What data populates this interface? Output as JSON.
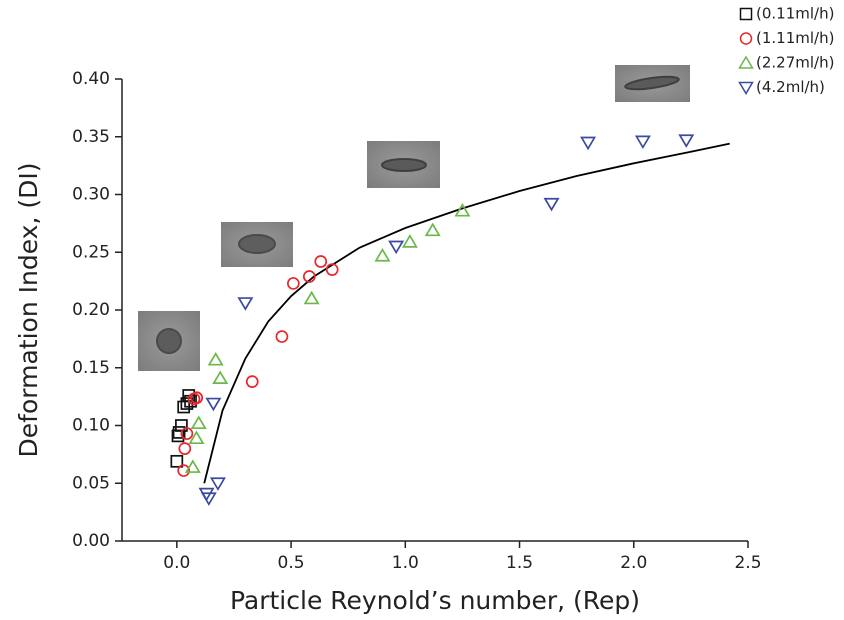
{
  "chart_data": {
    "type": "scatter",
    "x_label": "Particle Reynold’s number, (Rep)",
    "y_label": "Deformation Index, (DI)",
    "xlim": [
      -0.24,
      2.5
    ],
    "ylim": [
      0,
      0.4
    ],
    "xticks": [
      {
        "value": 0,
        "label": "0.0"
      },
      {
        "value": 0.5,
        "label": "0.5"
      },
      {
        "value": 1,
        "label": "1.0"
      },
      {
        "value": 1.5,
        "label": "1.5"
      },
      {
        "value": 2,
        "label": "2.0"
      },
      {
        "value": 2.5,
        "label": "2.5"
      }
    ],
    "yticks": [
      {
        "value": 0,
        "label": "0.00"
      },
      {
        "value": 0.05,
        "label": "0.05"
      },
      {
        "value": 0.1,
        "label": "0.10"
      },
      {
        "value": 0.15,
        "label": "0.15"
      },
      {
        "value": 0.2,
        "label": "0.20"
      },
      {
        "value": 0.25,
        "label": "0.25"
      },
      {
        "value": 0.3,
        "label": "0.30"
      },
      {
        "value": 0.35,
        "label": "0.35"
      },
      {
        "value": 0.4,
        "label": "0.40"
      }
    ],
    "legend": "top-right",
    "series": [
      {
        "name": "(0.11ml/h)",
        "color": "#111111",
        "marker": "square",
        "x": [
          0.0,
          0.005,
          0.01,
          0.02,
          0.03,
          0.044,
          0.052,
          0.06
        ],
        "values": [
          0.069,
          0.091,
          0.094,
          0.1,
          0.116,
          0.119,
          0.126,
          0.121
        ]
      },
      {
        "name": "(1.11ml/h)",
        "color": "#e8262a",
        "marker": "circle",
        "x": [
          0.03,
          0.035,
          0.044,
          0.075,
          0.087,
          0.33,
          0.46,
          0.51,
          0.58,
          0.63,
          0.68
        ],
        "values": [
          0.061,
          0.08,
          0.093,
          0.123,
          0.124,
          0.138,
          0.177,
          0.223,
          0.229,
          0.242,
          0.235
        ]
      },
      {
        "name": "(2.27ml/h)",
        "color": "#6ab84a",
        "marker": "triangle-up",
        "x": [
          0.07,
          0.086,
          0.096,
          0.17,
          0.19,
          0.59,
          0.9,
          1.02,
          1.12,
          1.25
        ],
        "values": [
          0.064,
          0.089,
          0.102,
          0.157,
          0.141,
          0.21,
          0.247,
          0.259,
          0.269,
          0.286
        ]
      },
      {
        "name": "(4.2ml/h)",
        "color": "#3b4aa0",
        "marker": "triangle-down",
        "x": [
          0.13,
          0.14,
          0.18,
          0.16,
          0.3,
          0.96,
          1.64,
          1.8,
          2.04,
          2.23
        ],
        "values": [
          0.041,
          0.037,
          0.05,
          0.119,
          0.206,
          0.255,
          0.292,
          0.345,
          0.346,
          0.347
        ]
      }
    ],
    "fit_line": {
      "color": "#000000",
      "x": [
        0.12,
        0.2,
        0.3,
        0.4,
        0.5,
        0.6,
        0.8,
        1.0,
        1.25,
        1.5,
        1.75,
        2.0,
        2.25,
        2.42
      ],
      "values": [
        0.05,
        0.113,
        0.158,
        0.19,
        0.212,
        0.229,
        0.254,
        0.271,
        0.288,
        0.303,
        0.316,
        0.327,
        0.337,
        0.344
      ]
    }
  }
}
